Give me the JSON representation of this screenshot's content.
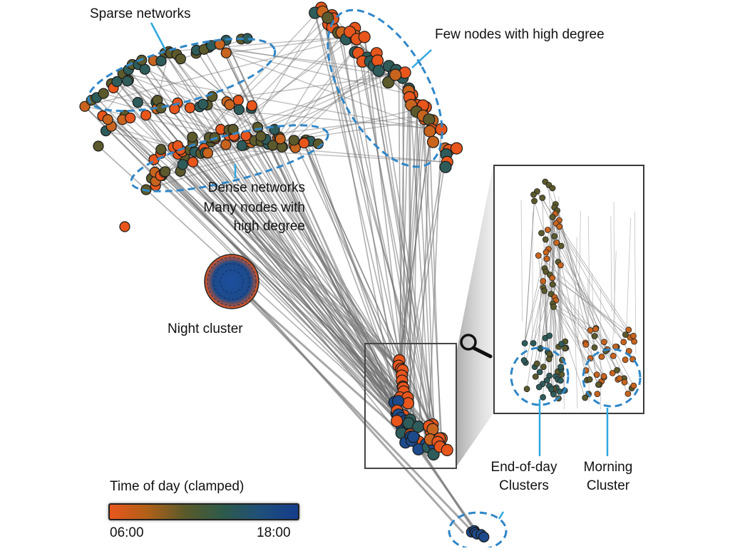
{
  "annotations": {
    "sparse": "Sparse networks",
    "few_nodes": "Few nodes with high degree",
    "dense_line1": "Dense networks",
    "dense_line2": "Many nodes with",
    "dense_line3": "high degree",
    "night": "Night cluster",
    "end_of_day_line1": "End-of-day",
    "end_of_day_line2": "Clusters",
    "morning_line1": "Morning",
    "morning_line2": "Cluster"
  },
  "legend": {
    "title": "Time of day (clamped)",
    "min_label": "06:00",
    "max_label": "18:00",
    "gradient": [
      "#e8561c",
      "#b06018",
      "#5a5a2a",
      "#2e5a4a",
      "#1f4f7a",
      "#143c8c"
    ]
  },
  "colors": {
    "morning": "#e8561c",
    "midday_orange": "#c8641e",
    "midday_olive": "#5c5a2c",
    "afternoon_teal": "#2e5c5a",
    "evening_blue": "#1d4a8a",
    "edge": "#6e6e6e",
    "highlight_ring": "#2f86c8"
  },
  "icons": {
    "zoom": "magnifier-icon"
  }
}
